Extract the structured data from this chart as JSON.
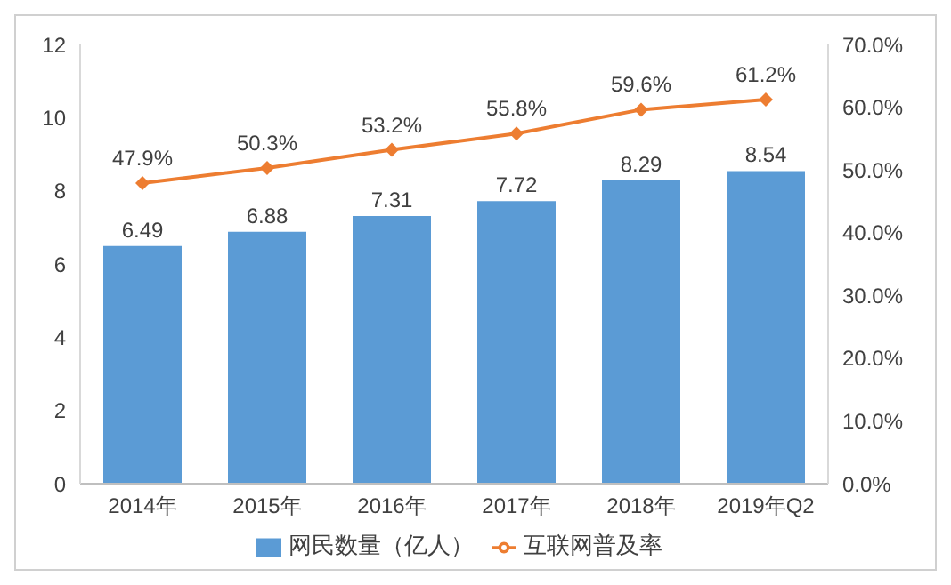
{
  "chart_data": {
    "type": "bar",
    "categories": [
      "2014年",
      "2015年",
      "2016年",
      "2017年",
      "2018年",
      "2019年Q2"
    ],
    "series": [
      {
        "name": "网民数量（亿人）",
        "color": "#5b9bd5",
        "values": [
          6.49,
          6.88,
          7.31,
          7.72,
          8.29,
          8.54
        ],
        "value_labels": [
          "6.49",
          "6.88",
          "7.31",
          "7.72",
          "8.29",
          "8.54"
        ]
      },
      {
        "name": "互联网普及率",
        "type": "line",
        "axis": "y2",
        "color": "#ed7d31",
        "values": [
          47.9,
          50.3,
          53.2,
          55.8,
          59.6,
          61.2
        ],
        "value_labels": [
          "47.9%",
          "50.3%",
          "53.2%",
          "55.8%",
          "59.6%",
          "61.2%"
        ]
      }
    ],
    "ylim": [
      0,
      12
    ],
    "yticks": [
      0,
      2,
      4,
      6,
      8,
      10,
      12
    ],
    "y2lim": [
      0,
      70
    ],
    "y2ticks": [
      {
        "value": 0,
        "label": "0.0%"
      },
      {
        "value": 10,
        "label": "10.0%"
      },
      {
        "value": 20,
        "label": "20.0%"
      },
      {
        "value": 30,
        "label": "30.0%"
      },
      {
        "value": 40,
        "label": "40.0%"
      },
      {
        "value": 50,
        "label": "50.0%"
      },
      {
        "value": 60,
        "label": "60.0%"
      },
      {
        "value": 70,
        "label": "70.0%"
      }
    ],
    "legend": "bottom",
    "marker": "diamond",
    "line_style": "solid",
    "grid": false
  }
}
